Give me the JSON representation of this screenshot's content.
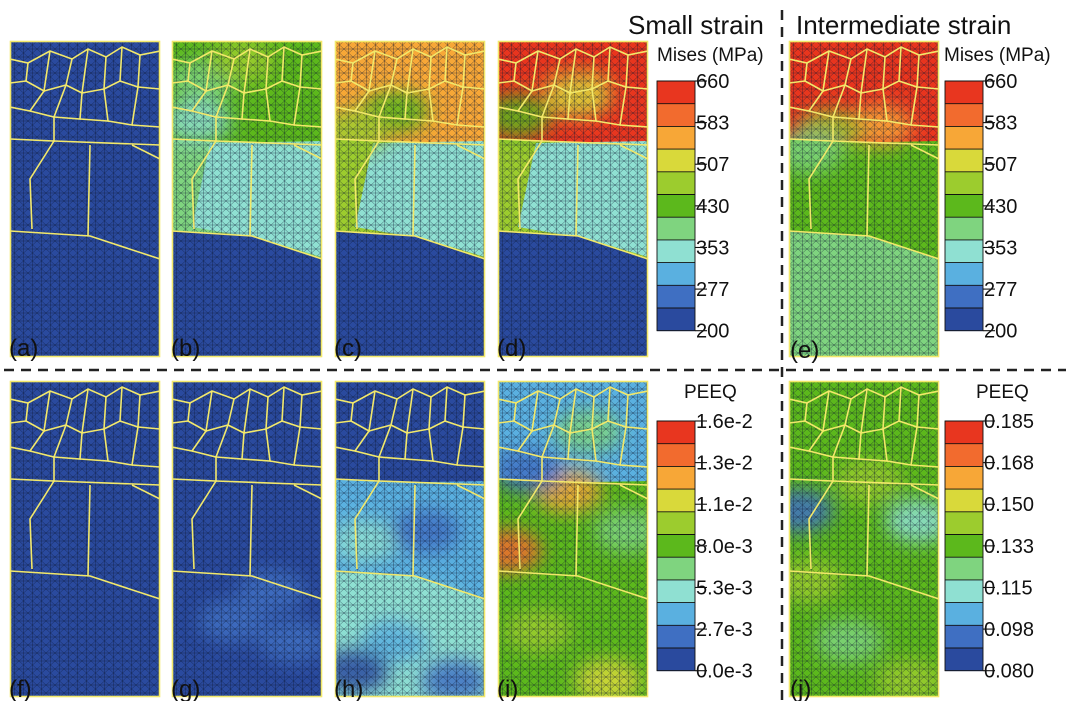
{
  "headings": {
    "small_strain": "Small strain",
    "intermediate_strain": "Intermediate strain"
  },
  "panels": [
    {
      "label": "(a)",
      "field": "mises",
      "scheme": "blue_all"
    },
    {
      "label": "(b)",
      "field": "mises",
      "scheme": "mises_b"
    },
    {
      "label": "(c)",
      "field": "mises",
      "scheme": "mises_c"
    },
    {
      "label": "(d)",
      "field": "mises",
      "scheme": "mises_d"
    },
    {
      "label": "(e)",
      "field": "mises",
      "scheme": "mises_e"
    },
    {
      "label": "(f)",
      "field": "peeq",
      "scheme": "blue_all"
    },
    {
      "label": "(g)",
      "field": "peeq",
      "scheme": "peeq_g"
    },
    {
      "label": "(h)",
      "field": "peeq",
      "scheme": "peeq_h"
    },
    {
      "label": "(i)",
      "field": "peeq",
      "scheme": "peeq_i"
    },
    {
      "label": "(j)",
      "field": "peeq",
      "scheme": "peeq_j"
    }
  ],
  "legends": {
    "mises_small": {
      "title": "Mises (MPa)",
      "ticks": [
        "660",
        "583",
        "507",
        "430",
        "353",
        "277",
        "200"
      ]
    },
    "mises_intermediate": {
      "title": "Mises (MPa)",
      "ticks": [
        "660",
        "583",
        "507",
        "430",
        "353",
        "277",
        "200"
      ]
    },
    "peeq_small": {
      "title": "PEEQ",
      "ticks": [
        "1.6e-2",
        "1.3e-2",
        "1.1e-2",
        "8.0e-3",
        "5.3e-3",
        "2.7e-3",
        "0.0e-3"
      ]
    },
    "peeq_intermediate": {
      "title": "PEEQ",
      "ticks": [
        "0.185",
        "0.168",
        "0.150",
        "0.133",
        "0.115",
        "0.098",
        "0.080"
      ]
    }
  },
  "colormap": [
    "#e8361f",
    "#f26b2e",
    "#f7a737",
    "#d9d93a",
    "#9ccc2e",
    "#5cb81c",
    "#7fd47f",
    "#8fe0d2",
    "#5ab0e0",
    "#3f6fc2",
    "#2a4a9e"
  ],
  "colors": {
    "grain_boundary": "#f2e86a",
    "mesh_line": "#0b1530",
    "divider": "#222222"
  }
}
